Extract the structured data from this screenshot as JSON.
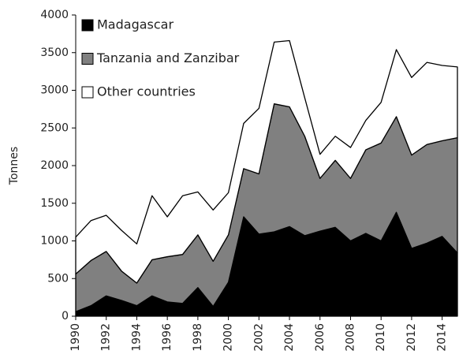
{
  "chart_data": {
    "type": "stacked_area",
    "y_label": "Tonnes",
    "x": [
      1990,
      1991,
      1992,
      1993,
      1994,
      1995,
      1996,
      1997,
      1998,
      1999,
      2000,
      2001,
      2002,
      2003,
      2004,
      2005,
      2006,
      2007,
      2008,
      2009,
      2010,
      2011,
      2012,
      2013,
      2014,
      2015
    ],
    "series": [
      {
        "name": "Madagascar",
        "color": "#000000",
        "values": [
          60,
          140,
          270,
          210,
          140,
          270,
          190,
          170,
          380,
          130,
          450,
          1320,
          1090,
          1120,
          1190,
          1070,
          1130,
          1180,
          1000,
          1100,
          1000,
          1380,
          900,
          970,
          1060,
          840
        ]
      },
      {
        "name": "Tanzania and Zanzibar",
        "color": "#808080",
        "values": [
          500,
          600,
          590,
          390,
          300,
          480,
          600,
          650,
          700,
          600,
          630,
          640,
          800,
          1700,
          1590,
          1320,
          700,
          890,
          830,
          1110,
          1300,
          1270,
          1240,
          1310,
          1270,
          1530
        ]
      },
      {
        "name": "Other countries",
        "color": "#ffffff",
        "values": [
          490,
          530,
          480,
          540,
          520,
          850,
          530,
          780,
          570,
          680,
          560,
          600,
          870,
          820,
          880,
          510,
          320,
          320,
          410,
          390,
          540,
          890,
          1030,
          1090,
          1000,
          940
        ]
      }
    ],
    "xlim": [
      1990,
      2015
    ],
    "xticks": [
      1990,
      1992,
      1994,
      1996,
      1998,
      2000,
      2002,
      2004,
      2006,
      2008,
      2010,
      2012,
      2014
    ],
    "ylim": [
      0,
      4000
    ],
    "yticks": [
      0,
      500,
      1000,
      1500,
      2000,
      2500,
      3000,
      3500,
      4000
    ],
    "legend": "top-left"
  }
}
